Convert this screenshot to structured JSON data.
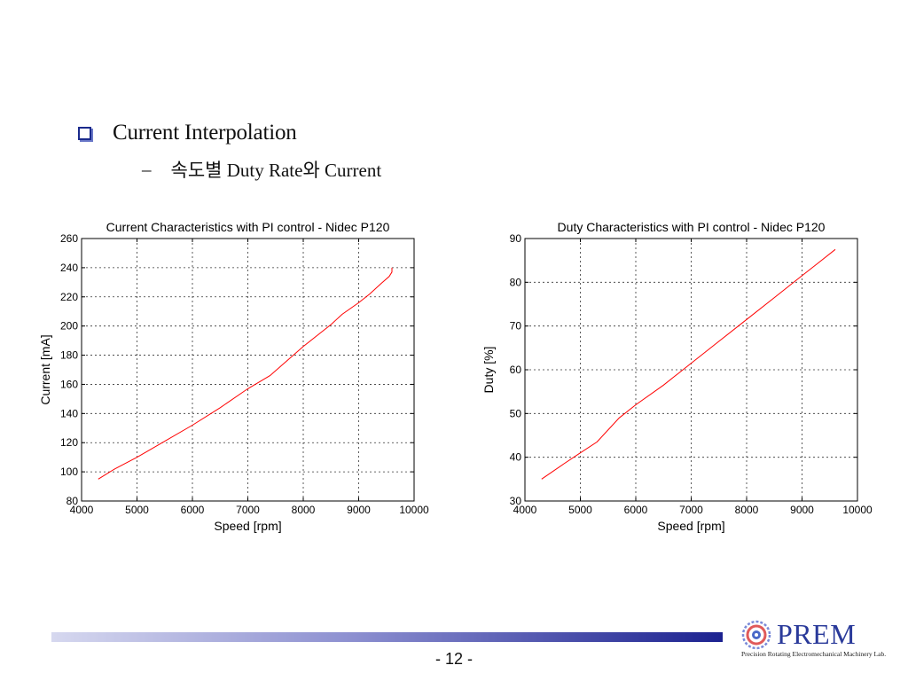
{
  "slide": {
    "heading": "Current Interpolation",
    "subheading_dash": "–",
    "subheading": "속도별 Duty Rate와 Current",
    "page_number": "- 12 -"
  },
  "logo": {
    "name": "PREM",
    "subtitle": "Precision Rotating Electromechanical Machinery Lab."
  },
  "colors": {
    "line": "#ff0000",
    "accent": "#1a2a8c",
    "logo": "#2a3a9a"
  },
  "chart_data": [
    {
      "type": "line",
      "title": "Current Characteristics with PI control - Nidec P120",
      "xlabel": "Speed [rpm]",
      "ylabel": "Current [mA]",
      "xlim": [
        4000,
        10000
      ],
      "ylim": [
        80,
        260
      ],
      "xticks": [
        4000,
        5000,
        6000,
        7000,
        8000,
        9000,
        10000
      ],
      "yticks": [
        80,
        100,
        120,
        140,
        160,
        180,
        200,
        220,
        240,
        260
      ],
      "grid": true,
      "series": [
        {
          "x": [
            4300,
            4600,
            5000,
            5500,
            6000,
            6500,
            7000,
            7400,
            7700,
            8000,
            8300,
            8500,
            8700,
            9000,
            9200,
            9400,
            9550,
            9600,
            9600
          ],
          "y": [
            95,
            102,
            110,
            121,
            132,
            144,
            157,
            166,
            176,
            186,
            195,
            201,
            208,
            216,
            222,
            229,
            234,
            237,
            240
          ]
        }
      ]
    },
    {
      "type": "line",
      "title": "Duty Characteristics with PI control - Nidec P120",
      "xlabel": "Speed [rpm]",
      "ylabel": "Duty [%]",
      "xlim": [
        4000,
        10000
      ],
      "ylim": [
        30,
        90
      ],
      "xticks": [
        4000,
        5000,
        6000,
        7000,
        8000,
        9000,
        10000
      ],
      "yticks": [
        30,
        40,
        50,
        60,
        70,
        80,
        90
      ],
      "grid": true,
      "series": [
        {
          "x": [
            4300,
            4700,
            5000,
            5300,
            5700,
            6000,
            6500,
            7000,
            7500,
            8000,
            8500,
            9000,
            9300,
            9600
          ],
          "y": [
            35,
            38.5,
            41,
            43.5,
            49,
            52,
            56.5,
            61.5,
            66.5,
            71.5,
            76.5,
            81.5,
            84.5,
            87.5
          ]
        }
      ]
    }
  ]
}
